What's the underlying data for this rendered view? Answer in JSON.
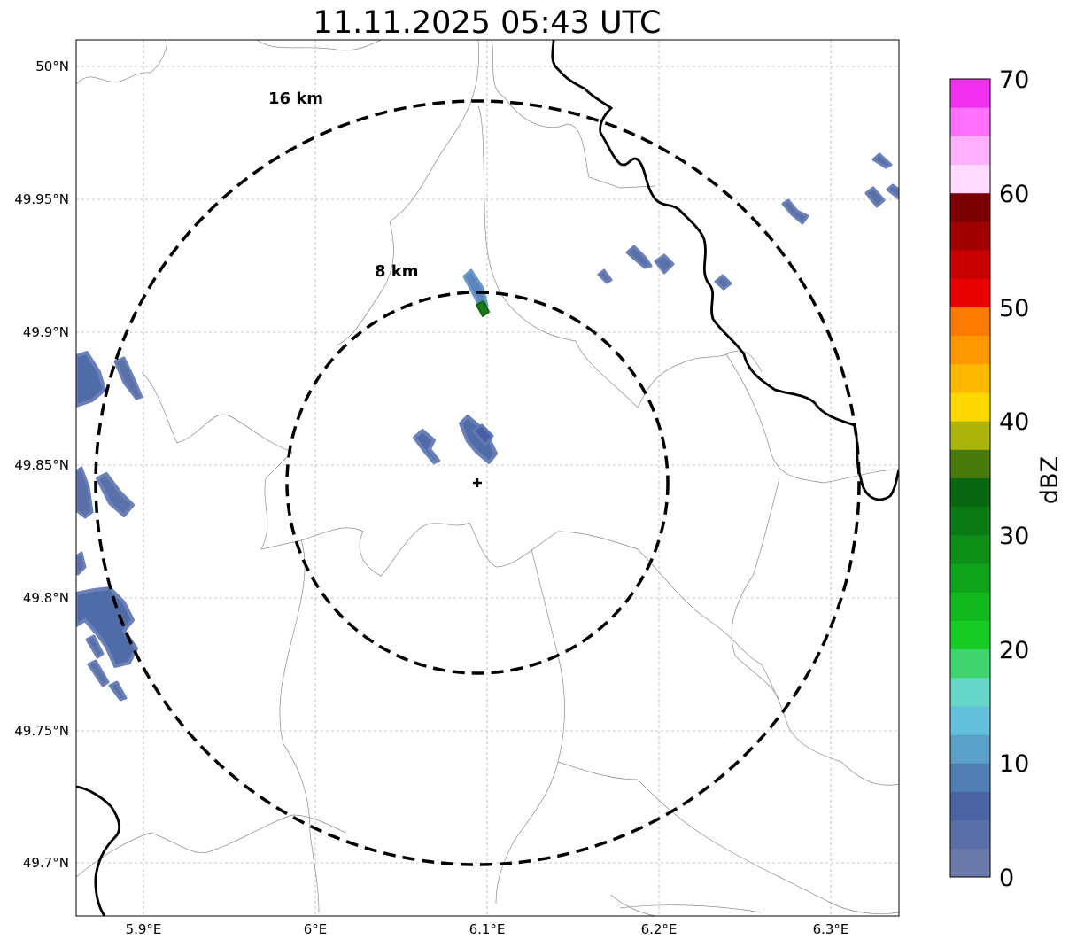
{
  "title": "11.11.2025 05:43 UTC",
  "map": {
    "lat_ticks": [
      "50°N",
      "49.95°N",
      "49.9°N",
      "49.85°N",
      "49.8°N",
      "49.75°N",
      "49.7°N"
    ],
    "lon_ticks": [
      "5.9°E",
      "6°E",
      "6.1°E",
      "6.2°E",
      "6.3°E"
    ],
    "rings": [
      {
        "label": "16 km",
        "radius_km": 16
      },
      {
        "label": "8 km",
        "radius_km": 8
      }
    ],
    "radar_site_marker": "radar-site-cross"
  },
  "colorbar": {
    "label": "dBZ",
    "ticks": [
      "0",
      "10",
      "20",
      "30",
      "40",
      "50",
      "60",
      "70"
    ],
    "colors": [
      "#6b7aad",
      "#5a6ea7",
      "#4a63a3",
      "#4f7eb3",
      "#5aa0c8",
      "#62c0dc",
      "#66d6c6",
      "#3fd46e",
      "#14cc24",
      "#12b81e",
      "#0fa31a",
      "#0d8e17",
      "#0b7a14",
      "#096610",
      "#4a7a0c",
      "#aab40a",
      "#ffd800",
      "#ffb800",
      "#ff9800",
      "#ff7a00",
      "#e80000",
      "#c80000",
      "#a00000",
      "#7a0000",
      "#ffdcff",
      "#ffb0ff",
      "#ff70ff",
      "#f230f0"
    ]
  }
}
